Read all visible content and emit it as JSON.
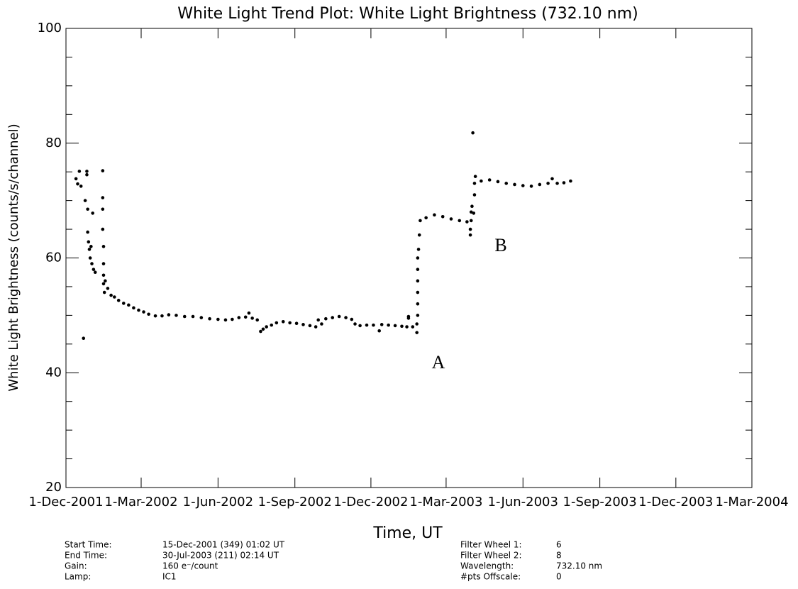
{
  "chart_data": {
    "type": "scatter",
    "title": "White Light Trend Plot: White Light Brightness (732.10 nm)",
    "xlabel": "Time, UT",
    "ylabel": "White Light Brightness (counts/s/channel)",
    "xlim": [
      "2001-12-01",
      "2004-03-01"
    ],
    "xticks": [
      {
        "value": "2001-12-01",
        "label": "1-Dec-2001"
      },
      {
        "value": "2002-03-01",
        "label": "1-Mar-2002"
      },
      {
        "value": "2002-06-01",
        "label": "1-Jun-2002"
      },
      {
        "value": "2002-09-01",
        "label": "1-Sep-2002"
      },
      {
        "value": "2002-12-01",
        "label": "1-Dec-2002"
      },
      {
        "value": "2003-03-01",
        "label": "1-Mar-2003"
      },
      {
        "value": "2003-06-01",
        "label": "1-Jun-2003"
      },
      {
        "value": "2003-09-01",
        "label": "1-Sep-2003"
      },
      {
        "value": "2003-12-01",
        "label": "1-Dec-2003"
      },
      {
        "value": "2004-03-01",
        "label": "1-Mar-2004"
      }
    ],
    "ylim": [
      20,
      100
    ],
    "yticks": [
      20,
      40,
      60,
      80,
      100
    ],
    "yminorticks": [
      25,
      30,
      35,
      45,
      50,
      55,
      65,
      70,
      75,
      85,
      90,
      95
    ],
    "color": "#000000",
    "series": [
      {
        "x": [
          "2001-12-13",
          "2001-12-15",
          "2001-12-17",
          "2001-12-19",
          "2001-12-22",
          "2001-12-24",
          "2001-12-26",
          "2001-12-26",
          "2001-12-27",
          "2001-12-27",
          "2001-12-28",
          "2001-12-29",
          "2001-12-30",
          "2001-12-31",
          "2002-01-01",
          "2002-01-02",
          "2002-01-03",
          "2002-01-05",
          "2002-01-14",
          "2002-01-14",
          "2002-01-14",
          "2002-01-14",
          "2002-01-15",
          "2002-01-15",
          "2002-01-15",
          "2002-01-15",
          "2002-01-16",
          "2002-01-17",
          "2002-01-20",
          "2002-01-24",
          "2002-01-28",
          "2002-02-02",
          "2002-02-08",
          "2002-02-14",
          "2002-02-20",
          "2002-02-26",
          "2002-03-04",
          "2002-03-10",
          "2002-03-18",
          "2002-03-26",
          "2002-04-03",
          "2002-04-12",
          "2002-04-22",
          "2002-05-02",
          "2002-05-12",
          "2002-05-22",
          "2002-06-01",
          "2002-06-10",
          "2002-06-18",
          "2002-06-26",
          "2002-07-04",
          "2002-07-08",
          "2002-07-12",
          "2002-07-18",
          "2002-07-22",
          "2002-07-25",
          "2002-07-29",
          "2002-08-04",
          "2002-08-10",
          "2002-08-18",
          "2002-08-26",
          "2002-09-03",
          "2002-09-11",
          "2002-09-19",
          "2002-09-26",
          "2002-09-29",
          "2002-10-03",
          "2002-10-08",
          "2002-10-16",
          "2002-10-24",
          "2002-11-01",
          "2002-11-08",
          "2002-11-12",
          "2002-11-18",
          "2002-11-26",
          "2002-12-04",
          "2002-12-11",
          "2002-12-14",
          "2002-12-22",
          "2002-12-30",
          "2003-01-07",
          "2003-01-13",
          "2003-01-15",
          "2003-01-15",
          "2003-01-20",
          "2003-01-25",
          "2003-01-25",
          "2003-01-26",
          "2003-01-26",
          "2003-01-26",
          "2003-01-26",
          "2003-01-26",
          "2003-01-26",
          "2003-01-27",
          "2003-01-28",
          "2003-01-29",
          "2003-02-05",
          "2003-02-15",
          "2003-02-25",
          "2003-03-07",
          "2003-03-17",
          "2003-03-26",
          "2003-03-30",
          "2003-03-30",
          "2003-03-31",
          "2003-03-31",
          "2003-04-01",
          "2003-04-02",
          "2003-04-03",
          "2003-04-04",
          "2003-04-04",
          "2003-04-05",
          "2003-04-12",
          "2003-04-22",
          "2003-05-02",
          "2003-05-12",
          "2003-05-22",
          "2003-06-01",
          "2003-06-11",
          "2003-06-21",
          "2003-07-01",
          "2003-07-06",
          "2003-07-12",
          "2003-07-20",
          "2003-07-28"
        ],
        "values": [
          73.8,
          72.9,
          75.1,
          72.5,
          46.0,
          70.0,
          75.1,
          74.5,
          68.5,
          64.5,
          62.8,
          61.5,
          60.0,
          62.0,
          59.0,
          67.8,
          58.0,
          57.5,
          75.2,
          70.5,
          68.5,
          65.0,
          62.0,
          59.0,
          57.0,
          55.5,
          54.0,
          56.0,
          54.7,
          53.5,
          53.2,
          52.6,
          52.1,
          51.8,
          51.3,
          50.9,
          50.6,
          50.2,
          49.9,
          49.9,
          50.1,
          50.0,
          49.8,
          49.8,
          49.6,
          49.4,
          49.3,
          49.2,
          49.3,
          49.6,
          49.7,
          50.4,
          49.5,
          49.2,
          47.2,
          47.6,
          48.0,
          48.3,
          48.7,
          48.9,
          48.7,
          48.6,
          48.4,
          48.2,
          48.0,
          49.2,
          48.5,
          49.4,
          49.6,
          49.8,
          49.6,
          49.3,
          48.5,
          48.2,
          48.3,
          48.3,
          47.3,
          48.4,
          48.3,
          48.2,
          48.1,
          48.0,
          49.8,
          49.5,
          48.0,
          47.0,
          48.5,
          50.0,
          52.0,
          54.0,
          56.0,
          58.0,
          60.0,
          61.5,
          64.0,
          66.5,
          67.0,
          67.5,
          67.2,
          66.8,
          66.5,
          66.3,
          64.0,
          65.0,
          66.5,
          68.0,
          69.0,
          81.8,
          67.8,
          71.0,
          73.0,
          74.2,
          73.4,
          73.6,
          73.3,
          73.0,
          72.8,
          72.6,
          72.5,
          72.8,
          73.0,
          73.8,
          73.0,
          73.1,
          73.4
        ]
      }
    ],
    "annotations": [
      "A",
      "B"
    ],
    "info": [
      [
        "Start Time:",
        "15-Dec-2001 (349) 01:02 UT",
        "Filter Wheel 1:",
        "6"
      ],
      [
        "End Time:",
        "30-Jul-2003 (211) 02:14 UT",
        "Filter Wheel 2:",
        "8"
      ],
      [
        "Gain:",
        "160 e⁻/count",
        "Wavelength:",
        "732.10 nm"
      ],
      [
        "Lamp:",
        "IC1",
        "#pts Offscale:",
        "0"
      ]
    ]
  }
}
